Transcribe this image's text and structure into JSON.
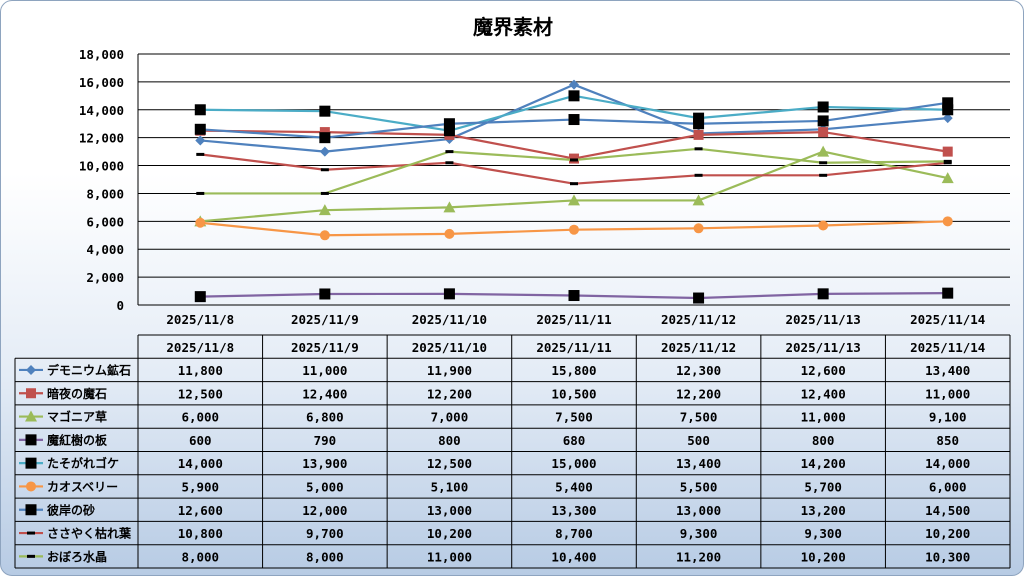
{
  "chart_data": {
    "type": "line",
    "title": "魔界素材",
    "categories": [
      "2025/11/8",
      "2025/11/9",
      "2025/11/10",
      "2025/11/11",
      "2025/11/12",
      "2025/11/13",
      "2025/11/14"
    ],
    "ylim": [
      0,
      18000
    ],
    "yticks": [
      0,
      2000,
      4000,
      6000,
      8000,
      10000,
      12000,
      14000,
      16000,
      18000
    ],
    "ytick_labels": [
      "0",
      "2,000",
      "4,000",
      "6,000",
      "8,000",
      "10,000",
      "12,000",
      "14,000",
      "16,000",
      "18,000"
    ],
    "grid": true,
    "legend": "data-table-below",
    "series": [
      {
        "name": "デモニウム鉱石",
        "color": "#4f81bd",
        "marker": "diamond",
        "values": [
          11800,
          11000,
          11900,
          15800,
          12300,
          12600,
          13400
        ],
        "labels": [
          "11,800",
          "11,000",
          "11,900",
          "15,800",
          "12,300",
          "12,600",
          "13,400"
        ]
      },
      {
        "name": "暗夜の魔石",
        "color": "#c0504d",
        "marker": "square",
        "values": [
          12500,
          12400,
          12200,
          10500,
          12200,
          12400,
          11000
        ],
        "labels": [
          "12,500",
          "12,400",
          "12,200",
          "10,500",
          "12,200",
          "12,400",
          "11,000"
        ]
      },
      {
        "name": "マゴニア草",
        "color": "#9bbb59",
        "marker": "triangle",
        "values": [
          6000,
          6800,
          7000,
          7500,
          7500,
          11000,
          9100
        ],
        "labels": [
          "6,000",
          "6,800",
          "7,000",
          "7,500",
          "7,500",
          "11,000",
          "9,100"
        ]
      },
      {
        "name": "魔紅樹の板",
        "color": "#8064a2",
        "marker": "bigsquare",
        "values": [
          600,
          790,
          800,
          680,
          500,
          800,
          850
        ],
        "labels": [
          "600",
          "790",
          "800",
          "680",
          "500",
          "800",
          "850"
        ]
      },
      {
        "name": "たそがれゴケ",
        "color": "#4bacc6",
        "marker": "bigsquare",
        "values": [
          14000,
          13900,
          12500,
          15000,
          13400,
          14200,
          14000
        ],
        "labels": [
          "14,000",
          "13,900",
          "12,500",
          "15,000",
          "13,400",
          "14,200",
          "14,000"
        ]
      },
      {
        "name": "カオスベリー",
        "color": "#f79646",
        "marker": "circle",
        "values": [
          5900,
          5000,
          5100,
          5400,
          5500,
          5700,
          6000
        ],
        "labels": [
          "5,900",
          "5,000",
          "5,100",
          "5,400",
          "5,500",
          "5,700",
          "6,000"
        ]
      },
      {
        "name": "彼岸の砂",
        "color": "#4f81bd",
        "marker": "bigsquare",
        "values": [
          12600,
          12000,
          13000,
          13300,
          13000,
          13200,
          14500
        ],
        "labels": [
          "12,600",
          "12,000",
          "13,000",
          "13,300",
          "13,000",
          "13,200",
          "14,500"
        ]
      },
      {
        "name": "ささやく枯れ葉",
        "color": "#c0504d",
        "marker": "dash",
        "values": [
          10800,
          9700,
          10200,
          8700,
          9300,
          9300,
          10200
        ],
        "labels": [
          "10,800",
          "9,700",
          "10,200",
          "8,700",
          "9,300",
          "9,300",
          "10,200"
        ]
      },
      {
        "name": "おぼろ水晶",
        "color": "#9bbb59",
        "marker": "dash",
        "values": [
          8000,
          8000,
          11000,
          10400,
          11200,
          10200,
          10300
        ],
        "labels": [
          "8,000",
          "8,000",
          "11,000",
          "10,400",
          "11,200",
          "10,200",
          "10,300"
        ]
      }
    ]
  }
}
